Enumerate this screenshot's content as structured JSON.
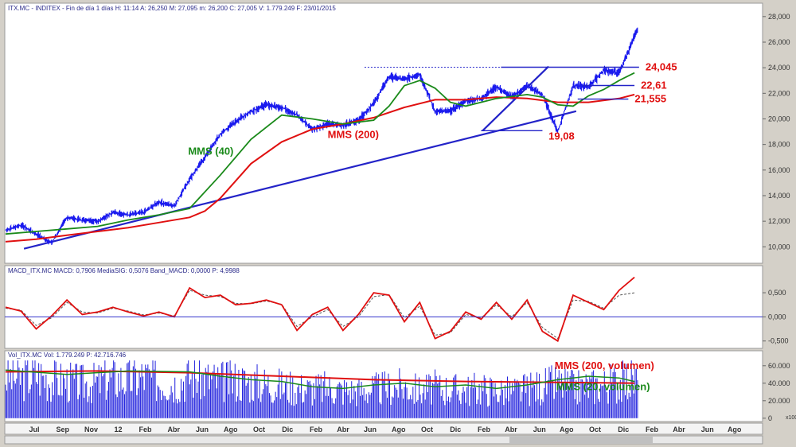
{
  "price_header": "ITX.MC - INDITEX - Fin de día 1 días H: 11:14 A: 26,250 M: 27,095 m: 26,200 C: 27,005 V: 1.779.249 F: 23/01/2015",
  "macd_header": "MACD_ITX.MC MACD: 0,7906 MediaSIG: 0,5076 Band_MACD: 0,0000 P: 4,9988",
  "vol_header": "Vol_ITX.MC Vol: 1.779.249 P: 42.716.746",
  "scale_note": "x100",
  "colors": {
    "price": "#1a1aee",
    "mms40": "#1a8a1a",
    "mms200": "#e01010",
    "trend": "#2323c8",
    "macd": "#e01010",
    "signal": "#555555",
    "volume": "#2020dd"
  },
  "chart_data": [
    {
      "type": "line",
      "panel": "price",
      "yticks": [
        "10,000",
        "12,000",
        "14,000",
        "16,000",
        "18,000",
        "20,000",
        "22,000",
        "24,000",
        "26,000",
        "28,000"
      ],
      "ytick_values": [
        10,
        12,
        14,
        16,
        18,
        20,
        22,
        24,
        26,
        28
      ],
      "ylim": [
        8.9,
        28.3
      ],
      "xlim": [
        0,
        42
      ],
      "series": [
        {
          "name": "ITX.MC",
          "x": [
            0,
            1,
            2,
            3,
            4,
            5,
            6,
            7,
            8,
            9,
            10,
            11,
            12,
            13,
            14,
            15,
            16,
            17,
            18,
            19,
            20,
            21,
            22,
            23,
            24,
            25,
            26,
            27,
            28,
            29,
            30,
            31,
            32,
            33,
            34,
            35,
            36,
            37,
            38,
            39,
            40,
            40.5,
            41.2
          ],
          "y": [
            11.3,
            11.7,
            11.0,
            10.3,
            12.3,
            12.1,
            12.0,
            12.7,
            12.5,
            12.7,
            13.5,
            13.2,
            15.3,
            17.0,
            18.8,
            19.8,
            20.6,
            21.1,
            20.9,
            20.3,
            19.2,
            19.6,
            19.5,
            19.9,
            21.2,
            23.3,
            23.1,
            23.5,
            20.6,
            20.6,
            21.4,
            21.6,
            22.5,
            21.7,
            22.6,
            21.9,
            19.0,
            22.6,
            22.5,
            23.8,
            23.6,
            25.0,
            27.0
          ]
        },
        {
          "name": "MMS (40)",
          "x": [
            0,
            2,
            4,
            6,
            8,
            10,
            12,
            14,
            16,
            18,
            20,
            22,
            24,
            25,
            26,
            27,
            28,
            29,
            30,
            32,
            34,
            35,
            36,
            37,
            38,
            39,
            40,
            41
          ],
          "y": [
            11.0,
            11.2,
            11.4,
            11.6,
            12.1,
            12.5,
            13.0,
            15.6,
            18.4,
            20.3,
            20.0,
            19.6,
            19.9,
            21.0,
            22.6,
            23.0,
            22.4,
            21.3,
            21.0,
            21.6,
            21.9,
            21.7,
            21.1,
            21.0,
            21.8,
            22.3,
            23.0,
            23.6
          ]
        },
        {
          "name": "MMS (200)",
          "x": [
            0,
            2,
            4,
            6,
            8,
            10,
            12,
            13,
            14,
            16,
            18,
            20,
            22,
            24,
            26,
            28,
            30,
            32,
            34,
            36,
            38,
            40,
            41
          ],
          "y": [
            10.4,
            10.6,
            10.9,
            11.2,
            11.5,
            11.9,
            12.3,
            12.8,
            13.8,
            16.5,
            18.2,
            19.2,
            19.6,
            20.1,
            20.9,
            21.5,
            21.5,
            21.7,
            21.6,
            21.3,
            21.3,
            21.6,
            21.9
          ]
        }
      ],
      "annotations": [
        {
          "label": "MMS (40)",
          "x": 11.9,
          "y": 17.2
        },
        {
          "label": "MMS (200)",
          "x": 21.0,
          "y": 18.5
        },
        {
          "label": "24,045",
          "x": 34.3,
          "y": 24.04,
          "level_x": [
            32.3,
            41.3
          ]
        },
        {
          "label": "22,61",
          "x": 35.7,
          "y": 22.61,
          "level_x": [
            37.6,
            41.0
          ]
        },
        {
          "label": "21,555",
          "x": 34.6,
          "y": 21.55,
          "level_x": [
            37.3,
            40.6
          ]
        },
        {
          "label": "19,08",
          "x": 35.4,
          "y": 19.08,
          "level_x": [
            31.0,
            35.0
          ]
        }
      ],
      "dotted_levels": [
        {
          "y": 24.04,
          "x": [
            23.4,
            34.0
          ]
        }
      ],
      "trendlines": [
        {
          "x": [
            1.2,
            37.2
          ],
          "y": [
            9.85,
            20.6
          ]
        },
        {
          "x": [
            31.1,
            35.4
          ],
          "y": [
            19.08,
            24.1
          ]
        }
      ]
    },
    {
      "type": "line",
      "panel": "macd",
      "yticks": [
        "-0,500",
        "0,000",
        "0,500"
      ],
      "ytick_values": [
        -0.5,
        0,
        0.5
      ],
      "ylim": [
        -0.62,
        0.88
      ],
      "xlim": [
        0,
        42
      ],
      "zero_line": 0,
      "series": [
        {
          "name": "MACD",
          "x": [
            0,
            1,
            2,
            3,
            4,
            5,
            6,
            7,
            8,
            9,
            10,
            11,
            12,
            13,
            14,
            15,
            16,
            17,
            18,
            19,
            20,
            21,
            22,
            23,
            24,
            25,
            26,
            27,
            28,
            29,
            30,
            31,
            32,
            33,
            34,
            35,
            36,
            37,
            38,
            39,
            40,
            41
          ],
          "y": [
            0.2,
            0.12,
            -0.25,
            0.02,
            0.35,
            0.05,
            0.1,
            0.2,
            0.1,
            0.02,
            0.1,
            0.0,
            0.6,
            0.4,
            0.45,
            0.25,
            0.28,
            0.35,
            0.25,
            -0.28,
            0.05,
            0.2,
            -0.28,
            0.05,
            0.5,
            0.45,
            -0.1,
            0.3,
            -0.45,
            -0.3,
            0.1,
            -0.05,
            0.3,
            -0.05,
            0.35,
            -0.3,
            -0.5,
            0.45,
            0.3,
            0.15,
            0.55,
            0.82
          ]
        },
        {
          "name": "MediaSIG",
          "x": [
            0,
            1,
            2,
            3,
            4,
            5,
            6,
            7,
            8,
            9,
            10,
            11,
            12,
            13,
            14,
            15,
            16,
            17,
            18,
            19,
            20,
            21,
            22,
            23,
            24,
            25,
            26,
            27,
            28,
            29,
            30,
            31,
            32,
            33,
            34,
            35,
            36,
            37,
            38,
            39,
            40,
            41
          ],
          "y": [
            0.18,
            0.14,
            -0.18,
            -0.02,
            0.3,
            0.1,
            0.08,
            0.18,
            0.12,
            0.04,
            0.08,
            0.02,
            0.55,
            0.45,
            0.42,
            0.28,
            0.27,
            0.33,
            0.26,
            -0.2,
            0.0,
            0.15,
            -0.2,
            0.0,
            0.42,
            0.46,
            -0.02,
            0.22,
            -0.38,
            -0.33,
            0.05,
            -0.02,
            0.25,
            0.0,
            0.3,
            -0.22,
            -0.45,
            0.35,
            0.32,
            0.18,
            0.45,
            0.5
          ]
        }
      ]
    },
    {
      "type": "bar",
      "panel": "volume",
      "yticks": [
        "0",
        "20.000",
        "40.000",
        "60.000"
      ],
      "ytick_values": [
        0,
        20,
        40,
        60
      ],
      "ylim": [
        -2,
        68
      ],
      "xlim": [
        0,
        42
      ],
      "series": [
        {
          "name": "Vol",
          "x": [
            0,
            1,
            2,
            3,
            4,
            5,
            6,
            7,
            8,
            9,
            10,
            11,
            12,
            13,
            14,
            15,
            16,
            17,
            18,
            19,
            20,
            21,
            22,
            23,
            24,
            25,
            26,
            27,
            28,
            29,
            30,
            31,
            32,
            33,
            34,
            35,
            36,
            37,
            38,
            39,
            40,
            41
          ],
          "y": [
            55,
            52,
            58,
            50,
            48,
            45,
            47,
            53,
            50,
            55,
            48,
            46,
            55,
            52,
            48,
            50,
            47,
            45,
            42,
            40,
            38,
            40,
            37,
            36,
            38,
            40,
            42,
            36,
            40,
            38,
            37,
            39,
            36,
            35,
            38,
            42,
            45,
            40,
            42,
            44,
            48,
            50
          ]
        },
        {
          "name": "MMS (200, volumen)",
          "x": [
            0,
            6,
            12,
            18,
            24,
            30,
            36,
            41
          ],
          "y": [
            53,
            54,
            52,
            48,
            44,
            42,
            41,
            40
          ]
        },
        {
          "name": "MMS (20, volumen)",
          "x": [
            0,
            4,
            8,
            12,
            14,
            16,
            18,
            20,
            22,
            24,
            26,
            28,
            30,
            32,
            34,
            36,
            38,
            40,
            41
          ],
          "y": [
            55,
            50,
            54,
            53,
            48,
            44,
            42,
            36,
            34,
            38,
            40,
            36,
            38,
            34,
            38,
            44,
            48,
            46,
            42
          ]
        }
      ],
      "labels": [
        {
          "label": "MMS (200, volumen)",
          "x": 35.8,
          "y": 56
        },
        {
          "label": "MMS (20, volumen)",
          "x": 35.9,
          "y": 32
        }
      ]
    }
  ],
  "x_axis": {
    "labels": [
      {
        "label": "Jul",
        "x": 1.6
      },
      {
        "label": "Sep",
        "x": 3.6
      },
      {
        "label": "Nov",
        "x": 5.6
      },
      {
        "label": "12",
        "x": 7.5
      },
      {
        "label": "Feb",
        "x": 9.4
      },
      {
        "label": "Abr",
        "x": 11.4
      },
      {
        "label": "Jun",
        "x": 13.4
      },
      {
        "label": "Ago",
        "x": 15.4
      },
      {
        "label": "Oct",
        "x": 17.4
      },
      {
        "label": "Dic",
        "x": 19.4
      },
      {
        "label": "Feb",
        "x": 21.4
      },
      {
        "label": "Abr",
        "x": 23.3
      },
      {
        "label": "Jun",
        "x": 25.2
      },
      {
        "label": "Ago",
        "x": 27.2
      },
      {
        "label": "Oct",
        "x": 29.2
      },
      {
        "label": "Dic",
        "x": 31.2
      },
      {
        "label": "Feb",
        "x": 33.2
      },
      {
        "label": "Abr",
        "x": 35.1
      },
      {
        "label": "Jun",
        "x": 37.1
      },
      {
        "label": "Ago",
        "x": 39.0
      },
      {
        "label": "Oct",
        "x": 41.0
      },
      {
        "label": "Dic",
        "x": 43.0
      },
      {
        "label": "Feb",
        "x": 45.0
      },
      {
        "label": "Abr",
        "x": 46.9
      },
      {
        "label": "Jun",
        "x": 48.9
      },
      {
        "label": "Ago",
        "x": 50.8
      }
    ]
  }
}
